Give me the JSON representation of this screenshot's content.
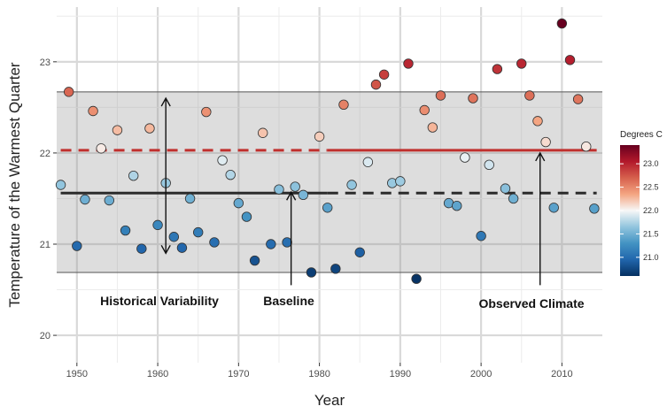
{
  "chart_data": {
    "type": "scatter",
    "xlabel": "Year",
    "ylabel": "Temperature of the Warmest Quarter",
    "xlim": [
      1947.5,
      2015
    ],
    "ylim": [
      19.7,
      23.6
    ],
    "x_ticks": [
      1950,
      1960,
      1970,
      1980,
      1990,
      2000,
      2010
    ],
    "y_ticks": [
      20,
      21,
      22,
      23
    ],
    "grid": true,
    "legend": {
      "title": "Degrees C",
      "placement": "right",
      "ticks": [
        21.0,
        21.5,
        22.0,
        22.5,
        23.0
      ],
      "tick_labels": [
        "21.0",
        "21.5",
        "22.0",
        "22.5",
        "23.0"
      ],
      "range": [
        20.6,
        23.4
      ],
      "colors": [
        "#053061",
        "#2166ac",
        "#4393c3",
        "#92c5de",
        "#f7f7f7",
        "#f4a582",
        "#d6604d",
        "#b2182b",
        "#67001f"
      ]
    },
    "variability_band": [
      20.69,
      22.67
    ],
    "baseline": {
      "value": 21.56,
      "solid_until": 1981
    },
    "observed_climate": {
      "value": 22.03,
      "solid_from": 1981
    },
    "points": [
      {
        "x": 1948,
        "y": 21.65
      },
      {
        "x": 1949,
        "y": 22.67
      },
      {
        "x": 1950,
        "y": 20.98
      },
      {
        "x": 1951,
        "y": 21.49
      },
      {
        "x": 1952,
        "y": 22.46
      },
      {
        "x": 1953,
        "y": 22.05
      },
      {
        "x": 1954,
        "y": 21.48
      },
      {
        "x": 1955,
        "y": 22.25
      },
      {
        "x": 1956,
        "y": 21.15
      },
      {
        "x": 1957,
        "y": 21.75
      },
      {
        "x": 1958,
        "y": 20.95
      },
      {
        "x": 1959,
        "y": 22.27
      },
      {
        "x": 1960,
        "y": 21.21
      },
      {
        "x": 1961,
        "y": 21.67
      },
      {
        "x": 1962,
        "y": 21.08
      },
      {
        "x": 1963,
        "y": 20.96
      },
      {
        "x": 1964,
        "y": 21.5
      },
      {
        "x": 1965,
        "y": 21.13
      },
      {
        "x": 1966,
        "y": 22.45
      },
      {
        "x": 1967,
        "y": 21.02
      },
      {
        "x": 1968,
        "y": 21.92
      },
      {
        "x": 1969,
        "y": 21.76
      },
      {
        "x": 1970,
        "y": 21.45
      },
      {
        "x": 1971,
        "y": 21.3
      },
      {
        "x": 1972,
        "y": 20.82
      },
      {
        "x": 1973,
        "y": 22.22
      },
      {
        "x": 1974,
        "y": 21.0
      },
      {
        "x": 1975,
        "y": 21.6
      },
      {
        "x": 1976,
        "y": 21.02
      },
      {
        "x": 1977,
        "y": 21.63
      },
      {
        "x": 1978,
        "y": 21.54
      },
      {
        "x": 1979,
        "y": 20.69
      },
      {
        "x": 1980,
        "y": 22.18
      },
      {
        "x": 1981,
        "y": 21.4
      },
      {
        "x": 1982,
        "y": 20.73
      },
      {
        "x": 1983,
        "y": 22.53
      },
      {
        "x": 1984,
        "y": 21.65
      },
      {
        "x": 1985,
        "y": 20.91
      },
      {
        "x": 1986,
        "y": 21.9
      },
      {
        "x": 1987,
        "y": 22.75
      },
      {
        "x": 1988,
        "y": 22.86
      },
      {
        "x": 1989,
        "y": 21.67
      },
      {
        "x": 1990,
        "y": 21.69
      },
      {
        "x": 1991,
        "y": 22.98
      },
      {
        "x": 1992,
        "y": 20.62
      },
      {
        "x": 1993,
        "y": 22.47
      },
      {
        "x": 1994,
        "y": 22.28
      },
      {
        "x": 1995,
        "y": 22.63
      },
      {
        "x": 1996,
        "y": 21.45
      },
      {
        "x": 1997,
        "y": 21.42
      },
      {
        "x": 1998,
        "y": 21.95
      },
      {
        "x": 1999,
        "y": 22.6
      },
      {
        "x": 2000,
        "y": 21.09
      },
      {
        "x": 2001,
        "y": 21.87
      },
      {
        "x": 2002,
        "y": 22.92
      },
      {
        "x": 2003,
        "y": 21.61
      },
      {
        "x": 2004,
        "y": 21.5
      },
      {
        "x": 2005,
        "y": 22.98
      },
      {
        "x": 2006,
        "y": 22.63
      },
      {
        "x": 2007,
        "y": 22.35
      },
      {
        "x": 2008,
        "y": 22.12
      },
      {
        "x": 2009,
        "y": 21.4
      },
      {
        "x": 2010,
        "y": 23.42
      },
      {
        "x": 2011,
        "y": 23.02
      },
      {
        "x": 2012,
        "y": 22.59
      },
      {
        "x": 2013,
        "y": 22.07
      },
      {
        "x": 2014,
        "y": 21.39
      }
    ],
    "annotations": [
      {
        "id": "historical-variability",
        "text": "Historical Variability",
        "x": 1961,
        "y_from": 21.96,
        "y_to": 20.48,
        "arrow": "double",
        "arrow_y_top": 22.6,
        "arrow_y_bottom": 20.9
      },
      {
        "id": "baseline",
        "text": "Baseline",
        "x": 1976.5,
        "arrow_y_top": 21.57,
        "arrow_y_bottom": 20.55
      },
      {
        "id": "observed-climate",
        "text": "Observed Climate",
        "x": 2007.3,
        "arrow_y_top": 22.0,
        "arrow_y_bottom": 20.55
      }
    ]
  }
}
